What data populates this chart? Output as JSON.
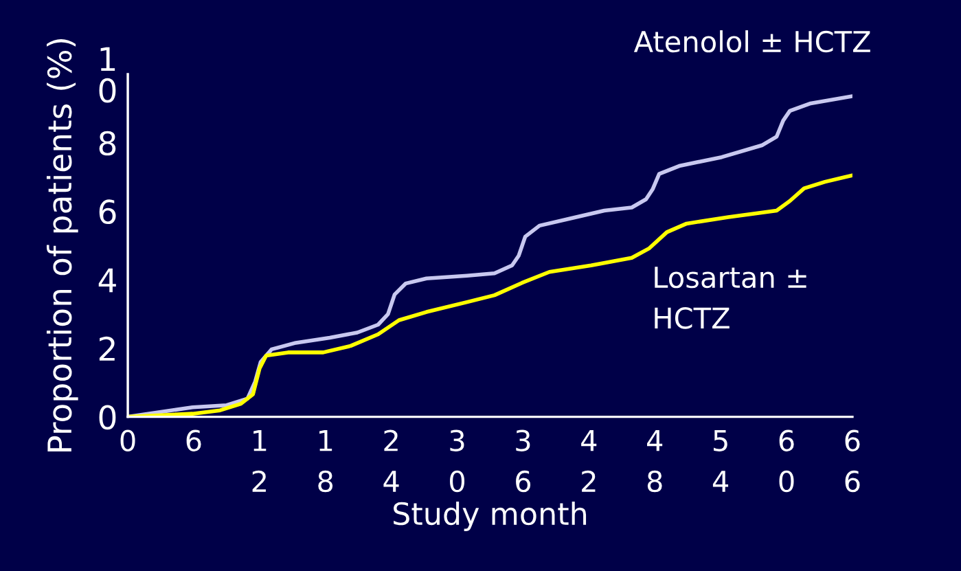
{
  "chart_data": {
    "type": "line",
    "xlabel": "Study month",
    "ylabel": "Proportion of patients (%)",
    "xlim": [
      0,
      66
    ],
    "ylim": [
      0,
      10
    ],
    "xticks": [
      0,
      6,
      {
        "value": 12,
        "label": "1\n2"
      },
      {
        "value": 18,
        "label": "1\n8"
      },
      {
        "value": 24,
        "label": "2\n4"
      },
      {
        "value": 30,
        "label": "3\n0"
      },
      {
        "value": 36,
        "label": "3\n6"
      },
      {
        "value": 42,
        "label": "4\n2"
      },
      {
        "value": 48,
        "label": "4\n8"
      },
      {
        "value": 54,
        "label": "5\n4"
      },
      {
        "value": 60,
        "label": "6\n0"
      },
      {
        "value": 66,
        "label": "6\n6"
      }
    ],
    "yticks": [
      0,
      2,
      4,
      6,
      {
        "value": 8,
        "label": "8"
      },
      {
        "value": 10,
        "label": "1\n0"
      }
    ],
    "grid": false,
    "legend": false,
    "marker": "none",
    "line_style": "solid",
    "series": [
      {
        "name": "Atenolol ± HCTZ",
        "color": "#c8c8f0",
        "x": [
          0,
          5.9,
          9,
          10.9,
          11.6,
          12.1,
          13.1,
          15.3,
          18.4,
          20.9,
          22.8,
          23.7,
          24.3,
          25.3,
          27.2,
          30.9,
          33.4,
          35,
          35.6,
          36.2,
          37.5,
          40.3,
          43.4,
          45.9,
          47.2,
          47.8,
          48.4,
          50.3,
          54.1,
          57.8,
          59.1,
          59.7,
          60.3,
          62.2,
          66
        ],
        "values": [
          0,
          0.28,
          0.34,
          0.53,
          1.03,
          1.6,
          1.97,
          2.16,
          2.31,
          2.46,
          2.69,
          3.0,
          3.57,
          3.89,
          4.04,
          4.12,
          4.19,
          4.42,
          4.7,
          5.26,
          5.58,
          5.79,
          6.02,
          6.11,
          6.35,
          6.64,
          7.09,
          7.33,
          7.58,
          7.93,
          8.18,
          8.65,
          8.93,
          9.15,
          9.36
        ]
      },
      {
        "name": "Losartan ±\nHCTZ",
        "color": "#ffff00",
        "x": [
          0,
          5.9,
          8.4,
          10.3,
          11.4,
          12,
          12.6,
          14.6,
          17.8,
          20.3,
          22.8,
          24.7,
          27.2,
          30.9,
          33.4,
          35.9,
          38.4,
          42.2,
          45.9,
          47.5,
          49.1,
          50.9,
          54.7,
          59.1,
          60.3,
          61.6,
          63.5,
          66
        ],
        "values": [
          0,
          0.09,
          0.19,
          0.38,
          0.66,
          1.41,
          1.79,
          1.88,
          1.88,
          2.07,
          2.41,
          2.82,
          3.06,
          3.35,
          3.55,
          3.91,
          4.23,
          4.42,
          4.64,
          4.92,
          5.39,
          5.64,
          5.83,
          6.02,
          6.3,
          6.67,
          6.86,
          7.05
        ]
      }
    ]
  }
}
